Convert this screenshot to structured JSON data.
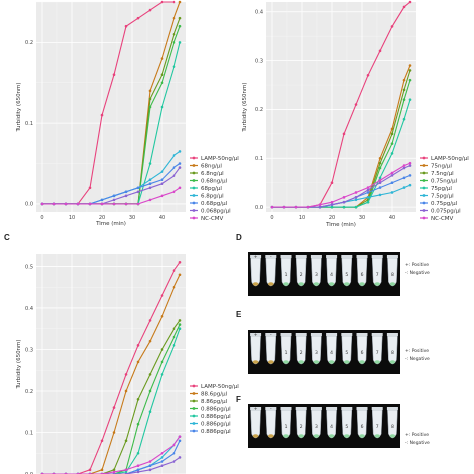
{
  "chart_data": [
    {
      "panel": "",
      "type": "line",
      "xlabel": "Time (min)",
      "ylabel": "Turbidity (650nm)",
      "xlim": [
        -2,
        48
      ],
      "ylim": [
        -0.01,
        0.25
      ],
      "xticks": [
        0,
        10,
        20,
        30,
        40
      ],
      "yticks": [
        0.0,
        0.1,
        0.2
      ],
      "grid": true,
      "legend_position": "right-bottom",
      "series": [
        {
          "name": "LAMP-50ng/µl",
          "color": "#e8427c",
          "x": [
            0,
            4,
            8,
            12,
            16,
            20,
            24,
            28,
            32,
            36,
            40,
            44
          ],
          "y": [
            0,
            0,
            0,
            0,
            0.02,
            0.11,
            0.16,
            0.22,
            0.23,
            0.24,
            0.25,
            0.25
          ]
        },
        {
          "name": "68ng/µl",
          "color": "#c77a1a",
          "x": [
            0,
            4,
            8,
            12,
            16,
            20,
            24,
            28,
            32,
            36,
            40,
            44,
            46
          ],
          "y": [
            0,
            0,
            0,
            0,
            0,
            0,
            0,
            0,
            0,
            0.14,
            0.18,
            0.23,
            0.25
          ]
        },
        {
          "name": "6.8ng/µl",
          "color": "#6a9a1f",
          "x": [
            0,
            4,
            8,
            12,
            16,
            20,
            24,
            28,
            32,
            36,
            40,
            44,
            46
          ],
          "y": [
            0,
            0,
            0,
            0,
            0,
            0,
            0,
            0,
            0,
            0.13,
            0.16,
            0.21,
            0.23
          ]
        },
        {
          "name": "0.68ng/µl",
          "color": "#3dbb4a",
          "x": [
            0,
            4,
            8,
            12,
            16,
            20,
            24,
            28,
            32,
            36,
            40,
            44,
            46
          ],
          "y": [
            0,
            0,
            0,
            0,
            0,
            0,
            0,
            0,
            0,
            0.12,
            0.15,
            0.2,
            0.22
          ]
        },
        {
          "name": "68pg/µl",
          "color": "#22c7a0",
          "x": [
            0,
            4,
            8,
            12,
            16,
            20,
            24,
            28,
            32,
            36,
            40,
            44,
            46
          ],
          "y": [
            0,
            0,
            0,
            0,
            0,
            0,
            0,
            0,
            0,
            0.05,
            0.12,
            0.17,
            0.2
          ]
        },
        {
          "name": "6.8pg/µl",
          "color": "#2eb5d6",
          "x": [
            0,
            4,
            8,
            12,
            16,
            20,
            24,
            28,
            32,
            36,
            40,
            44,
            46
          ],
          "y": [
            0,
            0,
            0,
            0,
            0,
            0.005,
            0.01,
            0.015,
            0.02,
            0.03,
            0.04,
            0.06,
            0.065
          ]
        },
        {
          "name": "0.68pg/µl",
          "color": "#4a86e8",
          "x": [
            0,
            4,
            8,
            12,
            16,
            20,
            24,
            28,
            32,
            36,
            40,
            44,
            46
          ],
          "y": [
            0,
            0,
            0,
            0,
            0,
            0.005,
            0.01,
            0.015,
            0.02,
            0.025,
            0.03,
            0.045,
            0.05
          ]
        },
        {
          "name": "0.068pg/µl",
          "color": "#8a63d2",
          "x": [
            0,
            4,
            8,
            12,
            16,
            20,
            24,
            28,
            32,
            36,
            40,
            44,
            46
          ],
          "y": [
            0,
            0,
            0,
            0,
            0,
            0,
            0.005,
            0.01,
            0.015,
            0.02,
            0.025,
            0.035,
            0.045
          ]
        },
        {
          "name": "NC-CMV",
          "color": "#d946c9",
          "x": [
            0,
            4,
            8,
            12,
            16,
            20,
            24,
            28,
            32,
            36,
            40,
            44,
            46
          ],
          "y": [
            0,
            0,
            0,
            0,
            0,
            0,
            0,
            0,
            0,
            0.005,
            0.01,
            0.015,
            0.02
          ]
        }
      ]
    },
    {
      "panel": "",
      "type": "line",
      "xlabel": "Time (min)",
      "ylabel": "Turbidity (650nm)",
      "xlim": [
        -2,
        48
      ],
      "ylim": [
        -0.01,
        0.42
      ],
      "xticks": [
        0,
        10,
        20,
        30,
        40
      ],
      "yticks": [
        0.0,
        0.1,
        0.2,
        0.3,
        0.4
      ],
      "grid": true,
      "legend_position": "right-bottom",
      "series": [
        {
          "name": "LAMP-50ng/µl",
          "color": "#e8427c",
          "x": [
            0,
            4,
            8,
            12,
            16,
            20,
            24,
            28,
            32,
            36,
            40,
            44,
            46
          ],
          "y": [
            0,
            0,
            0,
            0,
            0.005,
            0.05,
            0.15,
            0.21,
            0.27,
            0.32,
            0.37,
            0.41,
            0.42
          ]
        },
        {
          "name": "75ng/µl",
          "color": "#c77a1a",
          "x": [
            0,
            4,
            8,
            12,
            16,
            20,
            24,
            28,
            32,
            36,
            40,
            44,
            46
          ],
          "y": [
            0,
            0,
            0,
            0,
            0,
            0,
            0,
            0,
            0.02,
            0.1,
            0.16,
            0.26,
            0.29
          ]
        },
        {
          "name": "7.5ng/µl",
          "color": "#6a9a1f",
          "x": [
            0,
            4,
            8,
            12,
            16,
            20,
            24,
            28,
            32,
            36,
            40,
            44,
            46
          ],
          "y": [
            0,
            0,
            0,
            0,
            0,
            0,
            0,
            0,
            0.015,
            0.09,
            0.15,
            0.24,
            0.28
          ]
        },
        {
          "name": "0.75ng/µl",
          "color": "#3dbb4a",
          "x": [
            0,
            4,
            8,
            12,
            16,
            20,
            24,
            28,
            32,
            36,
            40,
            44,
            46
          ],
          "y": [
            0,
            0,
            0,
            0,
            0,
            0,
            0,
            0,
            0.01,
            0.08,
            0.13,
            0.22,
            0.26
          ]
        },
        {
          "name": "75pg/µl",
          "color": "#22c7a0",
          "x": [
            0,
            4,
            8,
            12,
            16,
            20,
            24,
            28,
            32,
            36,
            40,
            44,
            46
          ],
          "y": [
            0,
            0,
            0,
            0,
            0,
            0,
            0,
            0,
            0.01,
            0.06,
            0.11,
            0.18,
            0.22
          ]
        },
        {
          "name": "7.5pg/µl",
          "color": "#2eb5d6",
          "x": [
            0,
            4,
            8,
            12,
            16,
            20,
            24,
            28,
            32,
            36,
            40,
            44,
            46
          ],
          "y": [
            0,
            0,
            0,
            0,
            0,
            0.005,
            0.01,
            0.015,
            0.02,
            0.025,
            0.03,
            0.04,
            0.045
          ]
        },
        {
          "name": "0.75pg/µl",
          "color": "#4a86e8",
          "x": [
            0,
            4,
            8,
            12,
            16,
            20,
            24,
            28,
            32,
            36,
            40,
            44,
            46
          ],
          "y": [
            0,
            0,
            0,
            0,
            0,
            0.005,
            0.01,
            0.02,
            0.03,
            0.04,
            0.05,
            0.06,
            0.065
          ]
        },
        {
          "name": "0.075pg/µl",
          "color": "#8a63d2",
          "x": [
            0,
            4,
            8,
            12,
            16,
            20,
            24,
            28,
            32,
            36,
            40,
            44,
            46
          ],
          "y": [
            0,
            0,
            0,
            0,
            0,
            0.005,
            0.01,
            0.02,
            0.035,
            0.05,
            0.065,
            0.08,
            0.085
          ]
        },
        {
          "name": "NC-CMV",
          "color": "#d946c9",
          "x": [
            0,
            4,
            8,
            12,
            16,
            20,
            24,
            28,
            32,
            36,
            40,
            44,
            46
          ],
          "y": [
            0,
            0,
            0,
            0,
            0.005,
            0.01,
            0.02,
            0.03,
            0.04,
            0.055,
            0.07,
            0.085,
            0.09
          ]
        }
      ]
    },
    {
      "panel": "C",
      "type": "line",
      "xlabel": "",
      "ylabel": "Turbidity (650nm)",
      "xlim": [
        -2,
        48
      ],
      "ylim": [
        0.0,
        0.53
      ],
      "xticks": [],
      "yticks": [
        0.0,
        0.1,
        0.2,
        0.3,
        0.4,
        0.5
      ],
      "grid": true,
      "legend_position": "right-bottom",
      "series": [
        {
          "name": "LAMP-50ng/µl",
          "color": "#e8427c",
          "x": [
            0,
            4,
            8,
            12,
            16,
            20,
            24,
            28,
            32,
            36,
            40,
            44,
            46
          ],
          "y": [
            0,
            0,
            0,
            0,
            0.01,
            0.08,
            0.16,
            0.24,
            0.31,
            0.37,
            0.43,
            0.49,
            0.51
          ]
        },
        {
          "name": "88.6pg/µl",
          "color": "#c77a1a",
          "x": [
            0,
            4,
            8,
            12,
            16,
            20,
            24,
            28,
            32,
            36,
            40,
            44,
            46
          ],
          "y": [
            0,
            0,
            0,
            0,
            0,
            0.01,
            0.1,
            0.2,
            0.27,
            0.32,
            0.38,
            0.45,
            0.48
          ]
        },
        {
          "name": "8.86pg/µl",
          "color": "#6a9a1f",
          "x": [
            0,
            4,
            8,
            12,
            16,
            20,
            24,
            28,
            32,
            36,
            40,
            44,
            46
          ],
          "y": [
            0,
            0,
            0,
            0,
            0,
            0,
            0.01,
            0.08,
            0.18,
            0.24,
            0.3,
            0.35,
            0.37
          ]
        },
        {
          "name": "0.886pg/µl",
          "color": "#3dbb4a",
          "x": [
            0,
            4,
            8,
            12,
            16,
            20,
            24,
            28,
            32,
            36,
            40,
            44,
            46
          ],
          "y": [
            0,
            0,
            0,
            0,
            0,
            0,
            0,
            0.01,
            0.12,
            0.2,
            0.27,
            0.33,
            0.36
          ]
        },
        {
          "name": "0.886pg/µl",
          "color": "#22c7a0",
          "x": [
            0,
            4,
            8,
            12,
            16,
            20,
            24,
            28,
            32,
            36,
            40,
            44,
            46
          ],
          "y": [
            0,
            0,
            0,
            0,
            0,
            0,
            0,
            0.005,
            0.05,
            0.15,
            0.24,
            0.31,
            0.35
          ]
        },
        {
          "name": "0.886pg/µl",
          "color": "#2eb5d6",
          "x": [
            0,
            4,
            8,
            12,
            16,
            20,
            24,
            28,
            32,
            36,
            40,
            44,
            46
          ],
          "y": [
            0,
            0,
            0,
            0,
            0,
            0,
            0,
            0,
            0.01,
            0.02,
            0.04,
            0.07,
            0.09
          ]
        },
        {
          "name": "0.886pg/µl",
          "color": "#4a86e8",
          "x": [
            0,
            4,
            8,
            12,
            16,
            20,
            24,
            28,
            32,
            36,
            40,
            44,
            46
          ],
          "y": [
            0,
            0,
            0,
            0,
            0,
            0,
            0,
            0,
            0.01,
            0.02,
            0.03,
            0.05,
            0.08
          ]
        },
        {
          "name": "",
          "color": "#8a63d2",
          "x": [
            0,
            4,
            8,
            12,
            16,
            20,
            24,
            28,
            32,
            36,
            40,
            44,
            46
          ],
          "y": [
            0,
            0,
            0,
            0,
            0,
            0,
            0,
            0,
            0.005,
            0.01,
            0.02,
            0.03,
            0.04
          ]
        },
        {
          "name": "",
          "color": "#d946c9",
          "x": [
            0,
            4,
            8,
            12,
            16,
            20,
            24,
            28,
            32,
            36,
            40,
            44,
            46
          ],
          "y": [
            0,
            0,
            0,
            0,
            0,
            0,
            0.005,
            0.01,
            0.02,
            0.03,
            0.05,
            0.07,
            0.09
          ]
        }
      ]
    }
  ],
  "photos": [
    {
      "panel": "D",
      "tube_numbers": [
        "1",
        "2",
        "3",
        "4",
        "5",
        "6",
        "7",
        "8"
      ],
      "legend": [
        "+: Positive",
        "-: Negative"
      ]
    },
    {
      "panel": "E",
      "tube_numbers": [
        "1",
        "2",
        "3",
        "4",
        "5",
        "6",
        "7",
        "8"
      ],
      "legend": [
        "+: Positive",
        "-: Negative"
      ]
    },
    {
      "panel": "F",
      "tube_numbers": [
        "1",
        "2",
        "3",
        "4",
        "5",
        "6",
        "7",
        "8"
      ],
      "legend": [
        "+: Positive",
        "-: Negative"
      ]
    }
  ]
}
